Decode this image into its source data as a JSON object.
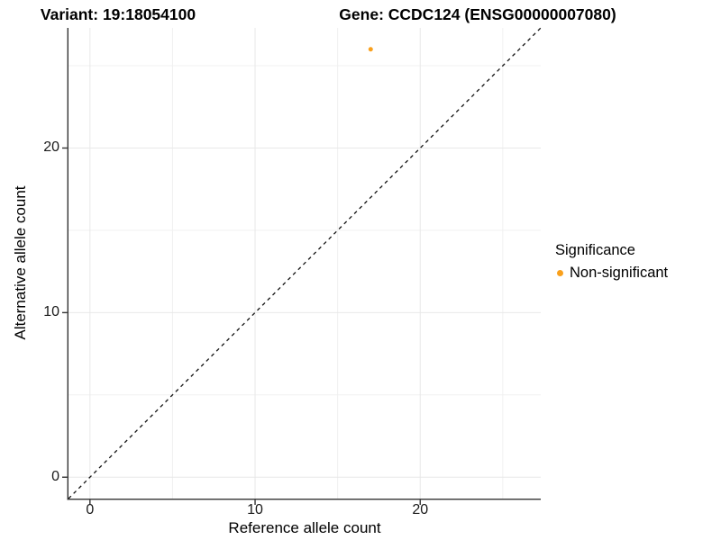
{
  "titles": {
    "variant": "Variant: 19:18054100",
    "gene": "Gene: CCDC124 (ENSG00000007080)"
  },
  "axes": {
    "x": {
      "label": "Reference allele count"
    },
    "y": {
      "label": "Alternative allele count"
    }
  },
  "legend": {
    "title": "Significance",
    "items": [
      {
        "label": "Non-significant",
        "color": "#F9A01C"
      }
    ]
  },
  "chart_data": {
    "type": "scatter",
    "title": "Variant: 19:18054100 | Gene: CCDC124 (ENSG00000007080)",
    "xlabel": "Reference allele count",
    "ylabel": "Alternative allele count",
    "xlim": [
      -1.3,
      27.3
    ],
    "ylim": [
      -1.3,
      27.3
    ],
    "x_ticks": [
      {
        "v": 0,
        "label": "0"
      },
      {
        "v": 10,
        "label": "10"
      },
      {
        "v": 20,
        "label": "20"
      }
    ],
    "y_ticks": [
      {
        "v": 0,
        "label": "0"
      },
      {
        "v": 10,
        "label": "10"
      },
      {
        "v": 20,
        "label": "20"
      }
    ],
    "grid_major": [
      0,
      10,
      20
    ],
    "grid_minor": [
      5,
      15,
      25
    ],
    "grid_major_color": "#E8E8E8",
    "grid_minor_color": "#F0F0F0",
    "grid": true,
    "background": "#FFFFFF",
    "axis_line_color": "#333333",
    "identity_line": {
      "equation": "y = x",
      "style": "dashed",
      "color": "#111111"
    },
    "series": [
      {
        "name": "Non-significant",
        "color": "#F9A01C",
        "point_radius": 2.5,
        "points": [
          {
            "x": 17,
            "y": 26
          }
        ]
      }
    ],
    "legend_position": "right",
    "legend_title": "Significance"
  }
}
